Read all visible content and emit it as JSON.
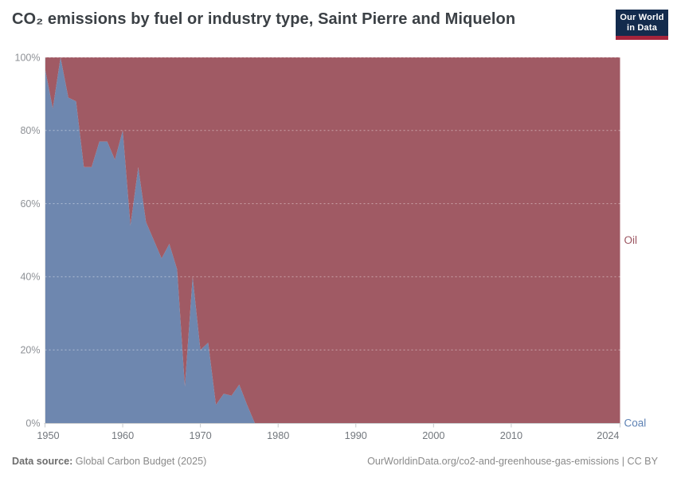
{
  "header": {
    "title": "CO₂ emissions by fuel or industry type, Saint Pierre and Miquelon",
    "logo": {
      "line1": "Our World",
      "line2": "in Data",
      "bg_color": "#132b4d",
      "bar_color": "#a4243b"
    }
  },
  "footer": {
    "source_label": "Data source:",
    "source_value": " Global Carbon Budget (2025)",
    "credit": "OurWorldinData.org/co2-and-greenhouse-gas-emissions | CC BY"
  },
  "chart_data": {
    "type": "area",
    "stacking": "percent",
    "grid": "dashed horizontal",
    "ylim": [
      0,
      100
    ],
    "yticks": [
      0,
      20,
      40,
      60,
      80,
      100
    ],
    "ytick_suffix": "%",
    "xticks": [
      1950,
      1960,
      1970,
      1980,
      1990,
      2000,
      2010,
      2024
    ],
    "axis_label_color": "#8e9196",
    "years": [
      1950,
      1951,
      1952,
      1953,
      1954,
      1955,
      1956,
      1957,
      1958,
      1959,
      1960,
      1961,
      1962,
      1963,
      1964,
      1965,
      1966,
      1967,
      1968,
      1969,
      1970,
      1971,
      1972,
      1973,
      1974,
      1975,
      1976,
      1977,
      1978,
      1979,
      1980,
      1981,
      1982,
      1983,
      1984,
      1985,
      1986,
      1987,
      1988,
      1989,
      1990,
      1991,
      1992,
      1993,
      1994,
      1995,
      1996,
      1997,
      1998,
      1999,
      2000,
      2001,
      2002,
      2003,
      2004,
      2005,
      2006,
      2007,
      2008,
      2009,
      2010,
      2011,
      2012,
      2013,
      2014,
      2015,
      2016,
      2017,
      2018,
      2019,
      2020,
      2021,
      2022,
      2023,
      2024
    ],
    "series": [
      {
        "name": "Coal",
        "color": "#6e87af",
        "label_color": "#5e82b4",
        "values": [
          97,
          86,
          100,
          89,
          88,
          70,
          70,
          77,
          77,
          72,
          80,
          54,
          70,
          55,
          50,
          45,
          49,
          42,
          10,
          40,
          20,
          22,
          5,
          8,
          7.5,
          10.5,
          5,
          0,
          0,
          0,
          0,
          0,
          0,
          0,
          0,
          0,
          0,
          0,
          0,
          0,
          0,
          0,
          0,
          0,
          0,
          0,
          0,
          0,
          0,
          0,
          0,
          0,
          0,
          0,
          0,
          0,
          0,
          0,
          0,
          0,
          0,
          0,
          0,
          0,
          0,
          0,
          0,
          0,
          0,
          0,
          0,
          0,
          0,
          0,
          0
        ]
      },
      {
        "name": "Oil",
        "color": "#a05a64",
        "label_color": "#9b5560",
        "values": [
          3,
          14,
          0,
          11,
          12,
          30,
          30,
          23,
          23,
          28,
          20,
          46,
          30,
          45,
          50,
          55,
          51,
          58,
          90,
          60,
          80,
          78,
          95,
          92,
          92.5,
          89.5,
          95,
          100,
          100,
          100,
          100,
          100,
          100,
          100,
          100,
          100,
          100,
          100,
          100,
          100,
          100,
          100,
          100,
          100,
          100,
          100,
          100,
          100,
          100,
          100,
          100,
          100,
          100,
          100,
          100,
          100,
          100,
          100,
          100,
          100,
          100,
          100,
          100,
          100,
          100,
          100,
          100,
          100,
          100,
          100,
          100,
          100,
          100,
          100,
          100
        ]
      }
    ]
  }
}
